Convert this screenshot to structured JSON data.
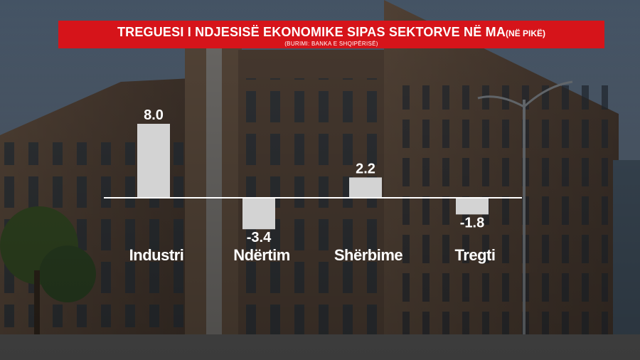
{
  "header": {
    "title": "TREGUESI I NDJESISË EKONOMIKE SIPAS SEKTORVE NË MA",
    "unit": "(NË PIKË)",
    "source": "(BURIMI: BANKA E SHQIPËRISË)"
  },
  "chart_data": {
    "type": "bar",
    "title": "TREGUESI I NDJESISË EKONOMIKE SIPAS SEKTORVE NË MA",
    "categories": [
      "Industri",
      "Ndërtim",
      "Shërbime",
      "Tregti"
    ],
    "values": [
      8.0,
      -3.4,
      2.2,
      -1.8
    ],
    "value_labels": [
      "8.0",
      "-3.4",
      "2.2",
      "-1.8"
    ],
    "baseline": 0,
    "ylim": [
      -4,
      8.5
    ],
    "grid": false,
    "bar_color": "#d3d3d3",
    "axis_color": "#ffffff"
  }
}
